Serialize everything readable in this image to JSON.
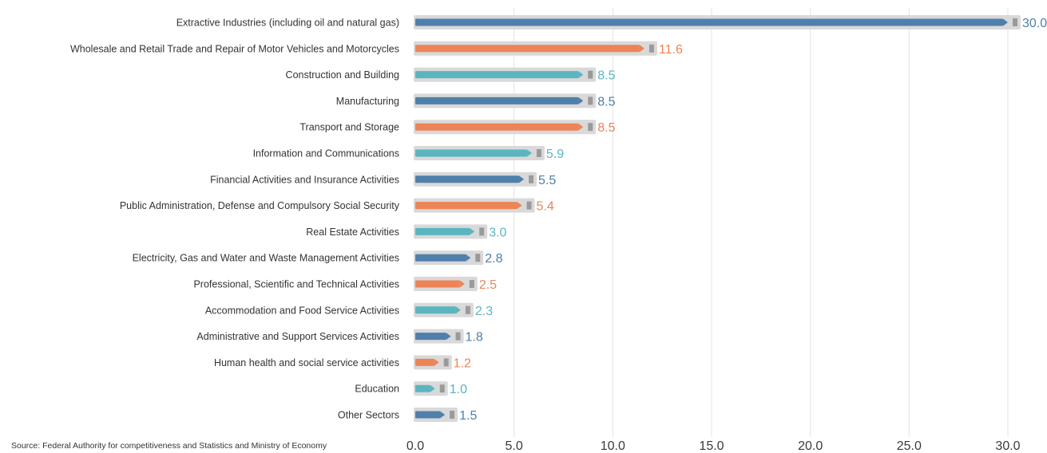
{
  "source": "Source: Federal Authority for competitiveness and Statistics and Ministry of Economy",
  "colors": {
    "blue": "#4f7fab",
    "orange": "#ec8458",
    "teal": "#5bb5bf",
    "shadow": "#d9d9d9",
    "cap": "#9a9a9a",
    "grid": "#e3e3e3"
  },
  "chart_data": {
    "type": "bar",
    "orientation": "horizontal",
    "title": "",
    "xlabel": "",
    "ylabel": "",
    "xlim": [
      0,
      30
    ],
    "x_ticks": [
      "0.0",
      "5.0",
      "10.0",
      "15.0",
      "20.0",
      "25.0",
      "30.0"
    ],
    "grid": "vertical",
    "categories": [
      "Extractive Industries (including oil and natural gas)",
      "Wholesale and Retail Trade and Repair of Motor Vehicles and Motorcycles",
      "Construction and Building",
      "Manufacturing",
      "Transport and Storage",
      "Information and Communications",
      "Financial Activities and Insurance Activities",
      "Public Administration, Defense and Compulsory Social Security",
      "Real Estate Activities",
      "Electricity, Gas and Water and Waste Management Activities",
      "Professional, Scientific and Technical Activities",
      "Accommodation and Food Service Activities",
      "Administrative and Support Services Activities",
      "Human health and social service activities",
      "Education",
      "Other Sectors"
    ],
    "values": [
      30.0,
      11.6,
      8.5,
      8.5,
      8.5,
      5.9,
      5.5,
      5.4,
      3.0,
      2.8,
      2.5,
      2.3,
      1.8,
      1.2,
      1.0,
      1.5
    ],
    "value_labels": [
      "30.0",
      "11.6",
      "8.5",
      "8.5",
      "8.5",
      "5.9",
      "5.5",
      "5.4",
      "3.0",
      "2.8",
      "2.5",
      "2.3",
      "1.8",
      "1.2",
      "1.0",
      "1.5"
    ],
    "bar_colors": [
      "blue",
      "orange",
      "teal",
      "blue",
      "orange",
      "teal",
      "blue",
      "orange",
      "teal",
      "blue",
      "orange",
      "teal",
      "blue",
      "orange",
      "teal",
      "blue"
    ]
  }
}
